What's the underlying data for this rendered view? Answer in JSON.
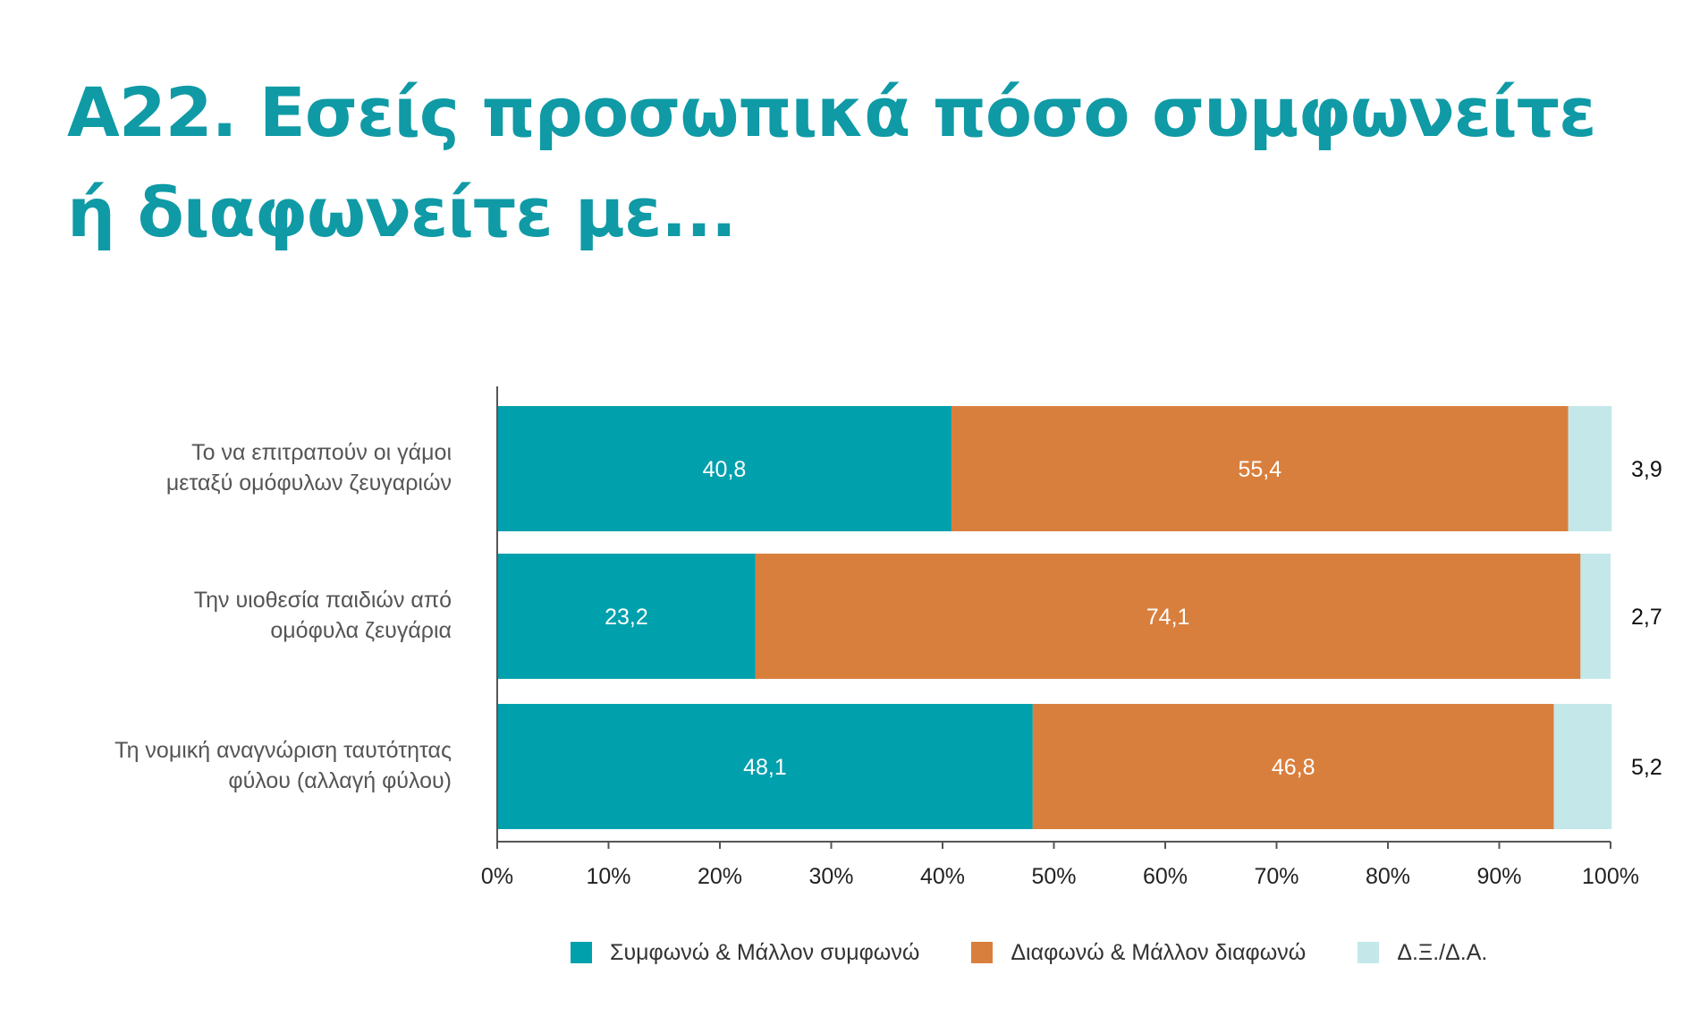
{
  "title": {
    "line1": "Α22. Εσείς προσωπικά πόσο συμφωνείτε",
    "line2": "ή διαφωνείτε με..."
  },
  "chart_data": {
    "type": "bar",
    "orientation": "horizontal",
    "stacked": true,
    "categories": [
      [
        "Το να επιτραπούν οι γάμοι",
        "μεταξύ ομόφυλων ζευγαριών"
      ],
      [
        "Την υιοθεσία παιδιών από",
        "ομόφυλα ζευγάρια"
      ],
      [
        "Τη νομική αναγνώριση ταυτότητας",
        "φύλου (αλλαγή φύλου)"
      ]
    ],
    "series": [
      {
        "name": "Συμφωνώ & Μάλλον συμφωνώ",
        "color": "#00a0ad",
        "values": [
          40.8,
          23.2,
          48.1
        ],
        "labels": [
          "40,8",
          "23,2",
          "48,1"
        ]
      },
      {
        "name": "Διαφωνώ & Μάλλον διαφωνώ",
        "color": "#d97f3d",
        "values": [
          55.4,
          74.1,
          46.8
        ],
        "labels": [
          "55,4",
          "74,1",
          "46,8"
        ]
      },
      {
        "name": "Δ.Ξ./Δ.Α.",
        "color": "#c4e8ea",
        "values": [
          3.9,
          2.7,
          5.2
        ],
        "labels": [
          "3,9",
          "2,7",
          "5,2"
        ]
      }
    ],
    "xlim": [
      0,
      100
    ],
    "xticks": [
      "0%",
      "10%",
      "20%",
      "30%",
      "40%",
      "50%",
      "60%",
      "70%",
      "80%",
      "90%",
      "100%"
    ],
    "grid": false,
    "legend_position": "bottom"
  }
}
